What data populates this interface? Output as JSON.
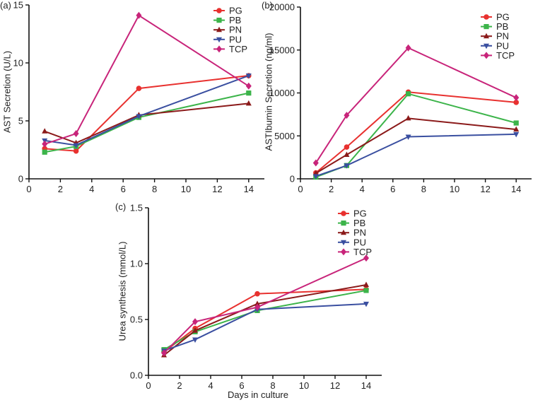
{
  "chart_data": [
    {
      "type": "line",
      "panel_label": "(a)",
      "title": "",
      "xlabel": "",
      "ylabel": "AST Secretion (U/L)",
      "x": [
        1,
        3,
        7,
        14
      ],
      "xlim": [
        0,
        15
      ],
      "xticks": [
        "0",
        "2",
        "4",
        "6",
        "8",
        "10",
        "12",
        "14"
      ],
      "ylim": [
        0,
        15
      ],
      "yticks": [
        "0",
        "5",
        "10",
        "15"
      ],
      "grid": false,
      "legend_position": "top-right",
      "series": [
        {
          "name": "PG",
          "marker": "circle",
          "color": "#e8312f",
          "values": [
            2.6,
            2.4,
            7.8,
            8.9
          ]
        },
        {
          "name": "PB",
          "marker": "square",
          "color": "#3cb44a",
          "values": [
            2.3,
            2.8,
            5.3,
            7.4
          ]
        },
        {
          "name": "PN",
          "marker": "triangle-up",
          "color": "#8b1a1a",
          "values": [
            4.1,
            3.1,
            5.5,
            6.5
          ]
        },
        {
          "name": "PU",
          "marker": "triangle-down",
          "color": "#3a4fa0",
          "values": [
            3.3,
            2.9,
            5.4,
            8.9
          ]
        },
        {
          "name": "TCP",
          "marker": "diamond",
          "color": "#c8247a",
          "values": [
            3.0,
            3.9,
            14.1,
            8.0
          ]
        }
      ]
    },
    {
      "type": "line",
      "panel_label": "(b)",
      "title": "",
      "xlabel": "",
      "ylabel": "ASTIbumin Secretion (ng/ml)",
      "x": [
        1,
        3,
        7,
        14
      ],
      "xlim": [
        0,
        15
      ],
      "xticks": [
        "0",
        "2",
        "4",
        "6",
        "8",
        "10",
        "12",
        "14"
      ],
      "ylim": [
        0,
        20000
      ],
      "yticks": [
        "0",
        "5000",
        "10000",
        "15000",
        "20000"
      ],
      "grid": false,
      "legend_position": "top-right",
      "series": [
        {
          "name": "PG",
          "marker": "circle",
          "color": "#e8312f",
          "values": [
            700,
            3700,
            10100,
            8900
          ]
        },
        {
          "name": "PB",
          "marker": "square",
          "color": "#3cb44a",
          "values": [
            200,
            1550,
            9900,
            6500
          ]
        },
        {
          "name": "PN",
          "marker": "triangle-up",
          "color": "#8b1a1a",
          "values": [
            650,
            2800,
            7050,
            5750
          ]
        },
        {
          "name": "PU",
          "marker": "triangle-down",
          "color": "#3a4fa0",
          "values": [
            300,
            1550,
            4900,
            5200
          ]
        },
        {
          "name": "TCP",
          "marker": "diamond",
          "color": "#c8247a",
          "values": [
            1850,
            7400,
            15250,
            9450
          ]
        }
      ]
    },
    {
      "type": "line",
      "panel_label": "(c)",
      "title": "",
      "xlabel": "Days in culture",
      "ylabel": "Urea synthesis (mmol/L)",
      "x": [
        1,
        3,
        7,
        14
      ],
      "xlim": [
        0,
        15
      ],
      "xticks": [
        "0",
        "2",
        "4",
        "6",
        "8",
        "10",
        "12",
        "14"
      ],
      "ylim": [
        0,
        1.5
      ],
      "yticks": [
        "0.0",
        "0.5",
        "1.0",
        "1.5"
      ],
      "grid": false,
      "legend_position": "top-right",
      "series": [
        {
          "name": "PG",
          "marker": "circle",
          "color": "#e8312f",
          "values": [
            0.21,
            0.42,
            0.73,
            0.77
          ]
        },
        {
          "name": "PB",
          "marker": "square",
          "color": "#3cb44a",
          "values": [
            0.23,
            0.39,
            0.58,
            0.76
          ]
        },
        {
          "name": "PN",
          "marker": "triangle-up",
          "color": "#8b1a1a",
          "values": [
            0.18,
            0.4,
            0.64,
            0.81
          ]
        },
        {
          "name": "PU",
          "marker": "triangle-down",
          "color": "#3a4fa0",
          "values": [
            0.22,
            0.32,
            0.59,
            0.64
          ]
        },
        {
          "name": "TCP",
          "marker": "diamond",
          "color": "#c8247a",
          "values": [
            0.2,
            0.48,
            0.61,
            1.05
          ]
        }
      ]
    }
  ]
}
